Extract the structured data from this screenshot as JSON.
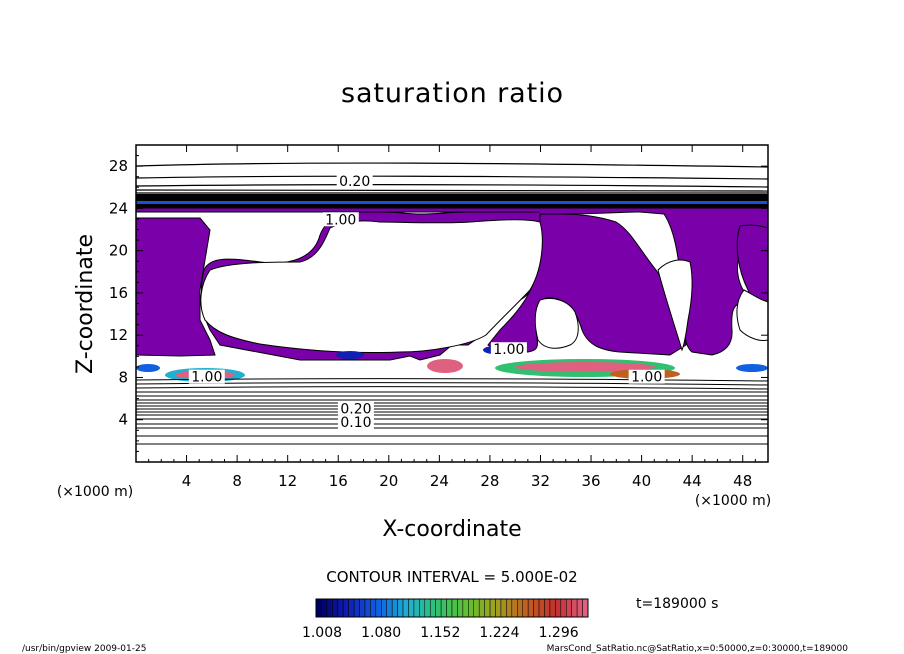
{
  "chart_data": {
    "type": "heatmap",
    "title": "saturation ratio",
    "xlabel": "X-coordinate",
    "ylabel": "Z-coordinate",
    "x_unit": "(×1000 m)",
    "y_unit": "(×1000 m)",
    "xlim": [
      0,
      50
    ],
    "ylim": [
      0,
      30
    ],
    "x_ticks": [
      4,
      8,
      12,
      16,
      20,
      24,
      28,
      32,
      36,
      40,
      44,
      48
    ],
    "y_ticks": [
      4,
      8,
      12,
      16,
      20,
      24,
      28
    ],
    "contour_labels": [
      {
        "text": "0.20",
        "x": 17.3,
        "z": 26.1
      },
      {
        "text": "1.00",
        "x": 16.2,
        "z": 22.5
      },
      {
        "text": "1.00",
        "x": 29.5,
        "z": 10.2
      },
      {
        "text": "1.00",
        "x": 5.6,
        "z": 7.6
      },
      {
        "text": "1.00",
        "x": 40.4,
        "z": 7.6
      },
      {
        "text": "0.20",
        "x": 17.4,
        "z": 4.6
      },
      {
        "text": "0.10",
        "x": 17.4,
        "z": 3.3
      }
    ],
    "contour_interval": "CONTOUR INTERVAL = 5.000E-02",
    "time": "t=189000  s",
    "colorbar": {
      "ticks": [
        "1.008",
        "1.080",
        "1.152",
        "1.224",
        "1.296"
      ],
      "colors": [
        "#000060",
        "#1020b0",
        "#1060e0",
        "#20b0d0",
        "#30c070",
        "#60c030",
        "#a0a020",
        "#c06020",
        "#c03030",
        "#e06080"
      ]
    },
    "fill_color": "#7a00aa"
  },
  "footer": {
    "left": "/usr/bin/gpview  2009-01-25",
    "right": "MarsCond_SatRatio.nc@SatRatio,x=0:50000,z=0:30000,t=189000"
  }
}
